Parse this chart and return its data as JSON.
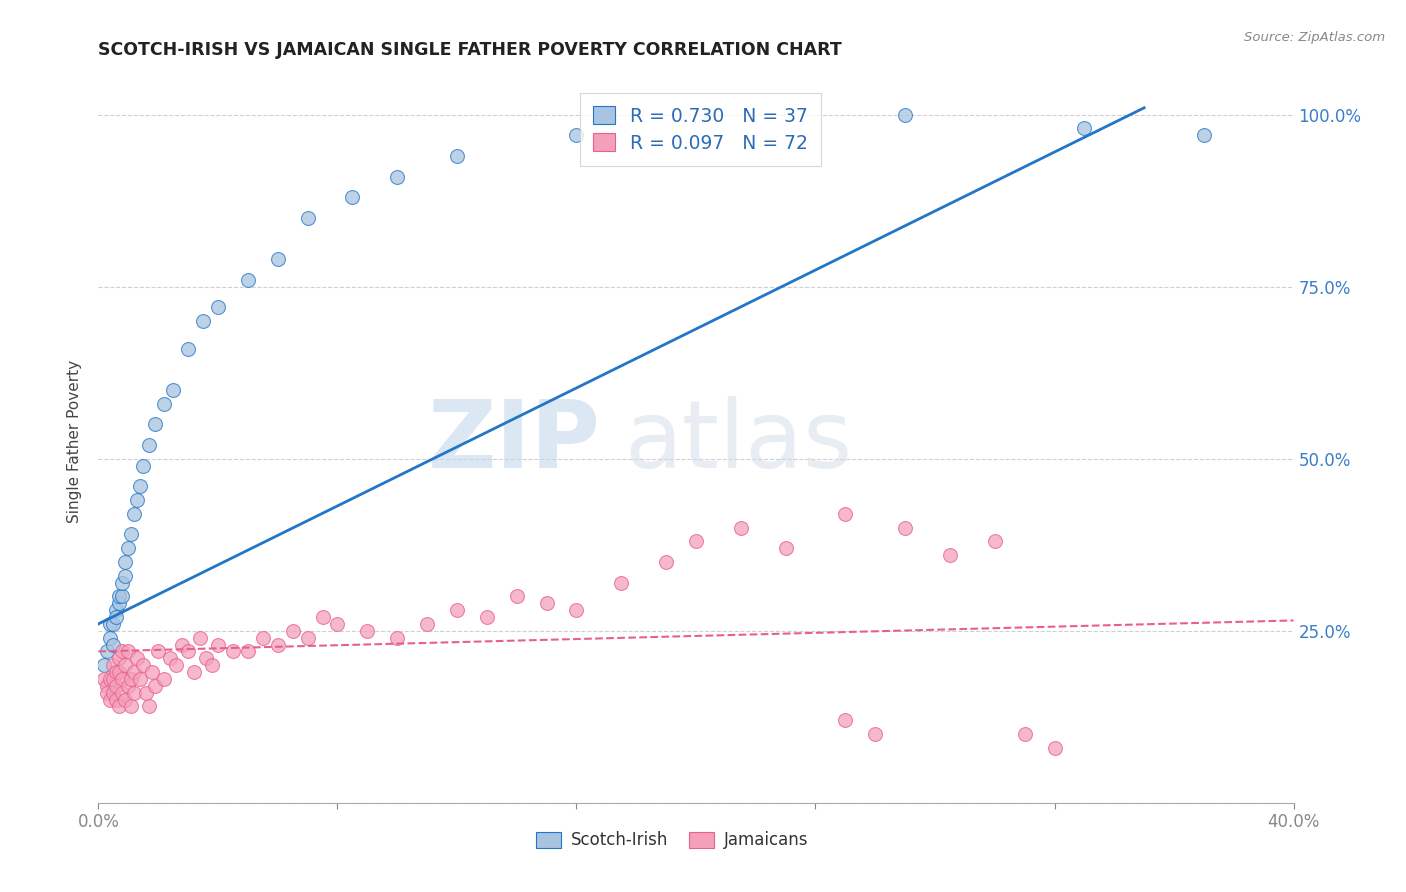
{
  "title": "SCOTCH-IRISH VS JAMAICAN SINGLE FATHER POVERTY CORRELATION CHART",
  "source": "Source: ZipAtlas.com",
  "ylabel": "Single Father Poverty",
  "xlim": [
    0.0,
    0.4
  ],
  "ylim": [
    0.0,
    1.05
  ],
  "blue_R": 0.73,
  "blue_N": 37,
  "pink_R": 0.097,
  "pink_N": 72,
  "blue_color": "#a8c4e0",
  "blue_line_color": "#2176c7",
  "pink_color": "#f4a0bb",
  "pink_line_color": "#e8608a",
  "watermark_zip": "ZIP",
  "watermark_atlas": "atlas",
  "legend_labels": [
    "Scotch-Irish",
    "Jamaicans"
  ],
  "blue_scatter_x": [
    0.002,
    0.003,
    0.004,
    0.004,
    0.005,
    0.005,
    0.006,
    0.006,
    0.007,
    0.007,
    0.008,
    0.008,
    0.009,
    0.009,
    0.01,
    0.011,
    0.012,
    0.013,
    0.014,
    0.015,
    0.017,
    0.019,
    0.022,
    0.025,
    0.03,
    0.035,
    0.04,
    0.05,
    0.06,
    0.07,
    0.085,
    0.1,
    0.12,
    0.16,
    0.27,
    0.37,
    0.33
  ],
  "blue_scatter_y": [
    0.2,
    0.22,
    0.24,
    0.26,
    0.23,
    0.26,
    0.28,
    0.27,
    0.29,
    0.3,
    0.3,
    0.32,
    0.33,
    0.35,
    0.37,
    0.39,
    0.42,
    0.44,
    0.46,
    0.49,
    0.52,
    0.55,
    0.58,
    0.6,
    0.66,
    0.7,
    0.72,
    0.76,
    0.79,
    0.85,
    0.88,
    0.91,
    0.94,
    0.97,
    1.0,
    0.97,
    0.98
  ],
  "pink_scatter_x": [
    0.002,
    0.003,
    0.003,
    0.004,
    0.004,
    0.005,
    0.005,
    0.005,
    0.006,
    0.006,
    0.006,
    0.007,
    0.007,
    0.007,
    0.008,
    0.008,
    0.008,
    0.009,
    0.009,
    0.01,
    0.01,
    0.011,
    0.011,
    0.012,
    0.012,
    0.013,
    0.014,
    0.015,
    0.016,
    0.017,
    0.018,
    0.019,
    0.02,
    0.022,
    0.024,
    0.026,
    0.028,
    0.03,
    0.032,
    0.034,
    0.036,
    0.038,
    0.04,
    0.045,
    0.05,
    0.055,
    0.06,
    0.065,
    0.07,
    0.075,
    0.08,
    0.09,
    0.1,
    0.11,
    0.12,
    0.13,
    0.14,
    0.15,
    0.16,
    0.175,
    0.19,
    0.2,
    0.215,
    0.23,
    0.25,
    0.27,
    0.285,
    0.3,
    0.31,
    0.32,
    0.25,
    0.26
  ],
  "pink_scatter_y": [
    0.18,
    0.17,
    0.16,
    0.18,
    0.15,
    0.2,
    0.18,
    0.16,
    0.19,
    0.17,
    0.15,
    0.21,
    0.19,
    0.14,
    0.22,
    0.18,
    0.16,
    0.2,
    0.15,
    0.22,
    0.17,
    0.18,
    0.14,
    0.19,
    0.16,
    0.21,
    0.18,
    0.2,
    0.16,
    0.14,
    0.19,
    0.17,
    0.22,
    0.18,
    0.21,
    0.2,
    0.23,
    0.22,
    0.19,
    0.24,
    0.21,
    0.2,
    0.23,
    0.22,
    0.22,
    0.24,
    0.23,
    0.25,
    0.24,
    0.27,
    0.26,
    0.25,
    0.24,
    0.26,
    0.28,
    0.27,
    0.3,
    0.29,
    0.28,
    0.32,
    0.35,
    0.38,
    0.4,
    0.37,
    0.42,
    0.4,
    0.36,
    0.38,
    0.1,
    0.08,
    0.12,
    0.1
  ]
}
